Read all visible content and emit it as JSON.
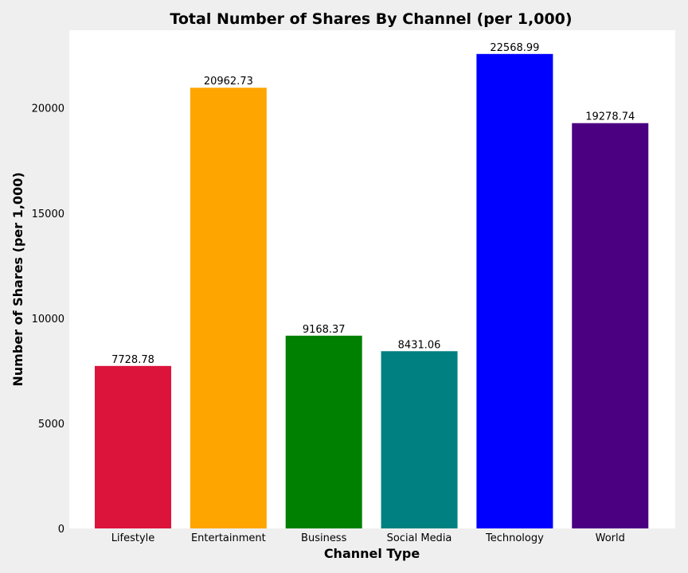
{
  "chart_data": {
    "type": "bar",
    "title": "Total Number of Shares By Channel (per 1,000)",
    "xlabel": "Channel Type",
    "ylabel": "Number of Shares (per 1,000)",
    "categories": [
      "Lifestyle",
      "Entertainment",
      "Business",
      "Social Media",
      "Technology",
      "World"
    ],
    "values": [
      7728.78,
      20962.73,
      9168.37,
      8431.06,
      22568.99,
      19278.74
    ],
    "value_labels": [
      "7728.78",
      "20962.73",
      "9168.37",
      "8431.06",
      "22568.99",
      "19278.74"
    ],
    "colors": [
      "#dc143c",
      "#ffa500",
      "#008000",
      "#008080",
      "#0000ff",
      "#4b0082"
    ],
    "yticks": [
      0,
      5000,
      10000,
      15000,
      20000
    ],
    "ytick_labels": [
      "0",
      "5000",
      "10000",
      "15000",
      "20000"
    ],
    "ylim": [
      0,
      23697.44
    ],
    "grid": false,
    "legend": "none",
    "background": "#efefef",
    "plot_background": "#ffffff"
  }
}
